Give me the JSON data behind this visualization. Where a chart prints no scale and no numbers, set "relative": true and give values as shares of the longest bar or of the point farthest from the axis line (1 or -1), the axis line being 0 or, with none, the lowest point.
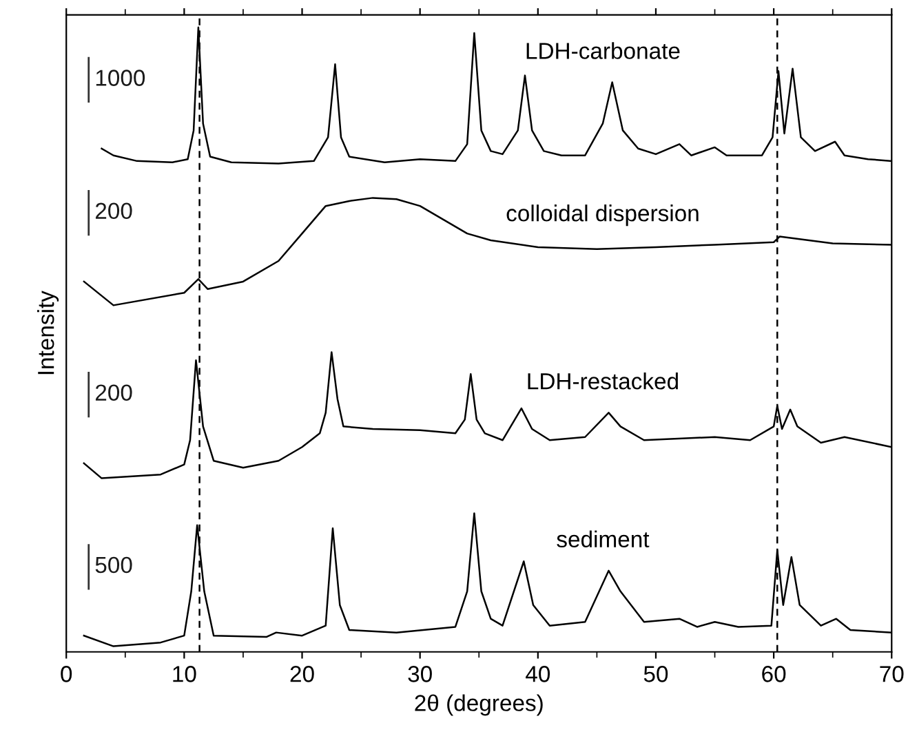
{
  "chart_data": {
    "type": "line",
    "relative": true,
    "xlabel": "2θ (degrees)",
    "ylabel": "Intensity",
    "xlim": [
      0,
      70
    ],
    "xticks": [
      0,
      10,
      20,
      30,
      40,
      50,
      60,
      70
    ],
    "tick_labels": "x",
    "grid": false,
    "series": [
      {
        "name": "LDH-carbonate",
        "color": "#000000",
        "x": [
          3.0,
          4,
          6,
          9,
          10.3,
          10.8,
          11.2,
          11.6,
          12.2,
          14,
          18,
          21,
          22.2,
          22.8,
          23.3,
          24,
          27,
          30,
          33,
          34.0,
          34.6,
          35.2,
          36,
          37,
          38.3,
          38.9,
          39.5,
          40.5,
          42,
          44,
          45.5,
          46.3,
          47.2,
          48.5,
          50,
          52,
          53,
          55,
          56,
          59,
          59.9,
          60.4,
          60.9,
          61.6,
          62.3,
          63.5,
          65.2,
          66,
          68,
          70
        ],
        "values": [
          0.806,
          0.795,
          0.786,
          0.784,
          0.789,
          0.835,
          1,
          0.846,
          0.793,
          0.784,
          0.782,
          0.786,
          0.824,
          0.941,
          0.824,
          0.793,
          0.784,
          0.789,
          0.786,
          0.813,
          0.991,
          0.835,
          0.802,
          0.797,
          0.835,
          0.923,
          0.835,
          0.802,
          0.795,
          0.795,
          0.846,
          0.912,
          0.835,
          0.806,
          0.797,
          0.813,
          0.795,
          0.808,
          0.795,
          0.795,
          0.824,
          0.93,
          0.83,
          0.934,
          0.824,
          0.802,
          0.817,
          0.795,
          0.789,
          0.786
        ]
      },
      {
        "name": "colloidal dispersion",
        "color": "#000000",
        "x": [
          1.5,
          4,
          10,
          11.2,
          12,
          15,
          18,
          20,
          22,
          24,
          26,
          28,
          30,
          32,
          34,
          36,
          40,
          45,
          50,
          55,
          60,
          60.5,
          65,
          70
        ],
        "values": [
          0.593,
          0.555,
          0.575,
          0.597,
          0.581,
          0.593,
          0.626,
          0.67,
          0.714,
          0.722,
          0.727,
          0.725,
          0.714,
          0.692,
          0.67,
          0.659,
          0.648,
          0.645,
          0.648,
          0.652,
          0.656,
          0.665,
          0.654,
          0.652
        ]
      },
      {
        "name": "LDH-restacked",
        "color": "#000000",
        "x": [
          1.5,
          3,
          8,
          10,
          10.5,
          11.0,
          11.6,
          12.5,
          15,
          18,
          20,
          21.5,
          22.0,
          22.5,
          23.0,
          23.5,
          26,
          30,
          33,
          33.8,
          34.3,
          34.8,
          35.5,
          37,
          38.6,
          39.5,
          41,
          44,
          46,
          47,
          49,
          55,
          58,
          60,
          60.3,
          60.7,
          61.4,
          62,
          64,
          66,
          70
        ],
        "values": [
          0.302,
          0.278,
          0.284,
          0.3,
          0.339,
          0.467,
          0.361,
          0.306,
          0.295,
          0.306,
          0.328,
          0.35,
          0.383,
          0.48,
          0.405,
          0.361,
          0.357,
          0.355,
          0.35,
          0.372,
          0.445,
          0.372,
          0.35,
          0.339,
          0.39,
          0.357,
          0.339,
          0.344,
          0.383,
          0.361,
          0.339,
          0.344,
          0.339,
          0.361,
          0.394,
          0.357,
          0.388,
          0.361,
          0.335,
          0.344,
          0.328
        ]
      },
      {
        "name": "sediment",
        "color": "#000000",
        "x": [
          1.5,
          4,
          8,
          10,
          10.6,
          11.1,
          11.7,
          12.5,
          17,
          17.8,
          20,
          22,
          22.6,
          23.2,
          24,
          28,
          33,
          34.0,
          34.6,
          35.2,
          36,
          37,
          38.8,
          39.6,
          41,
          44,
          46,
          47,
          49,
          52,
          53.5,
          55,
          57,
          59.8,
          60.3,
          60.8,
          61.5,
          62.2,
          64,
          65.3,
          66.5,
          70
        ],
        "values": [
          0.026,
          0.009,
          0.015,
          0.026,
          0.097,
          0.203,
          0.097,
          0.026,
          0.024,
          0.031,
          0.026,
          0.042,
          0.198,
          0.075,
          0.035,
          0.031,
          0.04,
          0.097,
          0.222,
          0.097,
          0.053,
          0.042,
          0.145,
          0.075,
          0.042,
          0.048,
          0.13,
          0.097,
          0.048,
          0.053,
          0.04,
          0.048,
          0.04,
          0.042,
          0.163,
          0.075,
          0.152,
          0.075,
          0.042,
          0.053,
          0.035,
          0.031
        ]
      }
    ],
    "ref_lines": [
      {
        "axis": "x",
        "value": 11.3,
        "color": "#000000",
        "line_style": "dashed"
      },
      {
        "axis": "x",
        "value": 60.3,
        "color": "#000000",
        "line_style": "dashed"
      }
    ],
    "annotations": [
      "1000",
      "200",
      "200",
      "500"
    ]
  }
}
